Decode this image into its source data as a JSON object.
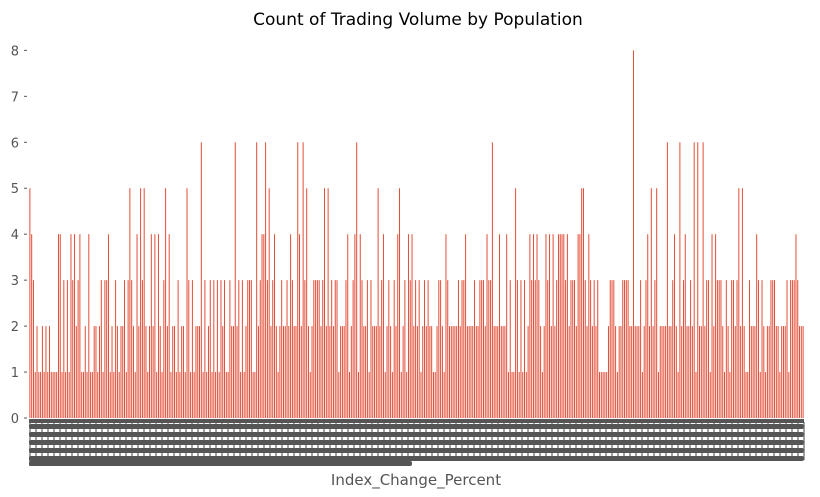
{
  "chart_data": {
    "type": "bar",
    "title": "Count of Trading Volume by Population",
    "xlabel": "Index_Change_Percent",
    "ylabel": "",
    "ylim": [
      0,
      8.4
    ],
    "yticks": [
      0,
      1,
      2,
      3,
      4,
      5,
      6,
      7,
      8
    ],
    "grid": false,
    "bar_color": "#E24A33",
    "tick_color": "#555555",
    "x_tick_labels": "dense, unreadable (overlapping)",
    "values": [
      5,
      4,
      3,
      1,
      2,
      1,
      1,
      2,
      1,
      2,
      1,
      2,
      1,
      1,
      1,
      1,
      4,
      4,
      1,
      3,
      1,
      3,
      1,
      4,
      3,
      4,
      2,
      3,
      4,
      1,
      1,
      2,
      1,
      4,
      1,
      1,
      2,
      2,
      1,
      2,
      3,
      1,
      3,
      3,
      4,
      1,
      2,
      1,
      3,
      2,
      1,
      2,
      2,
      3,
      1,
      3,
      5,
      3,
      2,
      1,
      4,
      2,
      5,
      3,
      5,
      2,
      1,
      2,
      4,
      2,
      4,
      1,
      4,
      2,
      1,
      3,
      5,
      2,
      4,
      1,
      2,
      2,
      1,
      3,
      1,
      2,
      2,
      1,
      5,
      3,
      1,
      3,
      1,
      2,
      2,
      2,
      6,
      1,
      3,
      1,
      2,
      3,
      1,
      3,
      1,
      3,
      1,
      3,
      2,
      3,
      1,
      1,
      3,
      2,
      2,
      6,
      2,
      3,
      1,
      3,
      1,
      2,
      3,
      3,
      3,
      1,
      1,
      6,
      2,
      3,
      4,
      4,
      6,
      3,
      5,
      2,
      3,
      4,
      2,
      1,
      2,
      3,
      2,
      2,
      3,
      2,
      4,
      3,
      2,
      2,
      6,
      4,
      2,
      6,
      3,
      5,
      2,
      1,
      2,
      3,
      3,
      3,
      3,
      2,
      3,
      5,
      2,
      5,
      2,
      3,
      2,
      3,
      3,
      1,
      2,
      2,
      2,
      3,
      4,
      1,
      2,
      3,
      4,
      6,
      1,
      4,
      3,
      2,
      2,
      3,
      1,
      3,
      2,
      2,
      2,
      5,
      2,
      3,
      4,
      1,
      2,
      3,
      2,
      1,
      3,
      2,
      4,
      5,
      1,
      2,
      3,
      1,
      4,
      3,
      4,
      2,
      3,
      2,
      3,
      1,
      2,
      3,
      2,
      3,
      2,
      2,
      1,
      1,
      2,
      3,
      3,
      2,
      1,
      4,
      3,
      2,
      2,
      2,
      2,
      2,
      3,
      2,
      3,
      3,
      4,
      2,
      2,
      2,
      2,
      3,
      2,
      2,
      3,
      3,
      3,
      2,
      4,
      3,
      3,
      6,
      2,
      2,
      2,
      4,
      2,
      2,
      2,
      4,
      1,
      3,
      1,
      1,
      5,
      3,
      1,
      3,
      1,
      3,
      1,
      2,
      4,
      3,
      4,
      3,
      4,
      3,
      2,
      1,
      2,
      4,
      3,
      4,
      2,
      4,
      2,
      3,
      4,
      4,
      4,
      4,
      3,
      4,
      2,
      3,
      3,
      3,
      2,
      4,
      4,
      5,
      5,
      3,
      2,
      4,
      3,
      2,
      3,
      2,
      3,
      1,
      1,
      1,
      1,
      1,
      2,
      3,
      3,
      3,
      2,
      1,
      2,
      2,
      3,
      3,
      3,
      3,
      2,
      2,
      8,
      2,
      2,
      2,
      3,
      1,
      2,
      3,
      4,
      2,
      5,
      2,
      3,
      5,
      1,
      2,
      2,
      2,
      2,
      6,
      2,
      2,
      3,
      4,
      2,
      1,
      6,
      2,
      3,
      4,
      2,
      2,
      3,
      2,
      6,
      1,
      6,
      2,
      2,
      6,
      2,
      3,
      3,
      1,
      4,
      2,
      4,
      3,
      3,
      3,
      2,
      1,
      3,
      2,
      1,
      3,
      3,
      2,
      3,
      5,
      2,
      5,
      2,
      1,
      1,
      3,
      2,
      2,
      2,
      4,
      3,
      1,
      3,
      2,
      1,
      2,
      2,
      3,
      3,
      3,
      2,
      2,
      1,
      2,
      2,
      2,
      3,
      1,
      3,
      3,
      3,
      4,
      3,
      2,
      2,
      2
    ]
  }
}
